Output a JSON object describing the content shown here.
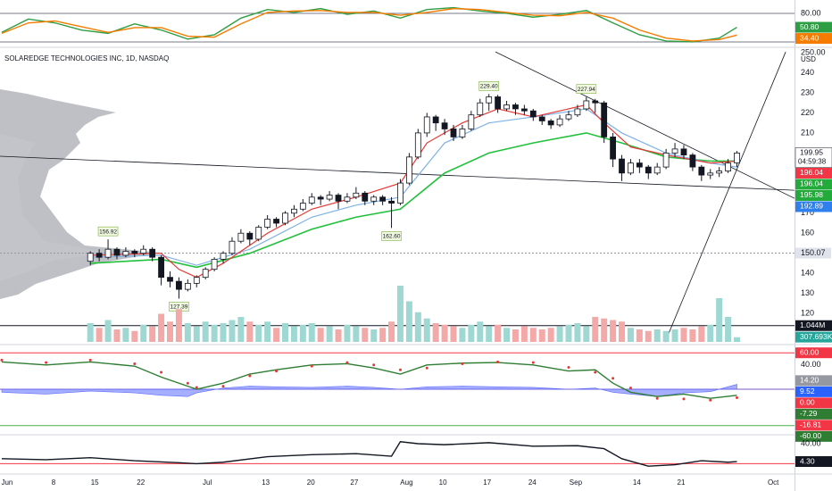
{
  "chart_data": [
    {
      "type": "line",
      "ylim": [
        10,
        100
      ],
      "yticks": [
        {
          "value": 80,
          "label": "80.00"
        }
      ],
      "levels": [
        {
          "value": 80,
          "color": "#787b86"
        },
        {
          "value": 20,
          "color": "#787b86"
        }
      ],
      "x": [
        -10,
        -7,
        -4,
        -1,
        2,
        5,
        8,
        11,
        14,
        17,
        20,
        23,
        26,
        29,
        32,
        35,
        38,
        41,
        44,
        47,
        50,
        53,
        56,
        59,
        62,
        65,
        68,
        71,
        73
      ],
      "series": [
        {
          "color": "#2e9e44",
          "values": [
            40,
            68,
            60,
            45,
            38,
            58,
            45,
            26,
            35,
            70,
            88,
            82,
            90,
            78,
            85,
            70,
            88,
            92,
            85,
            80,
            72,
            78,
            86,
            60,
            35,
            22,
            20,
            28,
            50.8
          ]
        },
        {
          "color": "#f57c00",
          "values": [
            38,
            60,
            64,
            52,
            40,
            50,
            50,
            32,
            30,
            58,
            82,
            85,
            86,
            82,
            82,
            76,
            82,
            90,
            88,
            82,
            76,
            75,
            82,
            70,
            45,
            28,
            22,
            25,
            34.4
          ]
        }
      ],
      "tags": [
        {
          "value": 50.8,
          "label": "50.80",
          "color": "#2e9e44"
        },
        {
          "value": 34.4,
          "label": "34.40",
          "color": "#f57c00"
        }
      ]
    },
    {
      "type": "candlestick",
      "title": "SOLAREDGE TECHNOLOGIES INC, 1D, NASDAQ",
      "unit": "USD",
      "ylim": [
        104.9,
        252.7
      ],
      "xlim": [
        -10.2,
        79.5
      ],
      "yticks": [
        {
          "value": 250,
          "label": "250.00"
        },
        240,
        230,
        220,
        210,
        170,
        160,
        140,
        130,
        120
      ],
      "xticks": [
        {
          "value": -9.4,
          "label": "Jun"
        },
        {
          "value": -4.15,
          "label": "8"
        },
        {
          "value": 0.5,
          "label": "15"
        },
        {
          "value": 5.7,
          "label": "22"
        },
        {
          "value": 13.2,
          "label": "Jul"
        },
        {
          "value": 19.8,
          "label": "13"
        },
        {
          "value": 24.9,
          "label": "20"
        },
        {
          "value": 29.8,
          "label": "27"
        },
        {
          "value": 35.7,
          "label": "Aug"
        },
        {
          "value": 39.8,
          "label": "10"
        },
        {
          "value": 44.8,
          "label": "17"
        },
        {
          "value": 49.9,
          "label": "24"
        },
        {
          "value": 54.8,
          "label": "Sep"
        },
        {
          "value": 61.7,
          "label": "14"
        },
        {
          "value": 66.7,
          "label": "21"
        },
        {
          "value": 77.1,
          "label": "Oct"
        }
      ],
      "up_color": "#ffffff",
      "down_color": "#131722",
      "outline": "#131722",
      "candles": [
        [
          146,
          151,
          144,
          150
        ],
        [
          150,
          152,
          146,
          148
        ],
        [
          148,
          156.92,
          147,
          152
        ],
        [
          152,
          153,
          147,
          149
        ],
        [
          149,
          153,
          148,
          151
        ],
        [
          151,
          152,
          148,
          150
        ],
        [
          150,
          154,
          149,
          152
        ],
        [
          152,
          153,
          146,
          148
        ],
        [
          148,
          149,
          134,
          138
        ],
        [
          138,
          141,
          133,
          136
        ],
        [
          136,
          138,
          127.39,
          132
        ],
        [
          132,
          137,
          131,
          135
        ],
        [
          135,
          139,
          133,
          138
        ],
        [
          138,
          143,
          137,
          142
        ],
        [
          142,
          148,
          141,
          147
        ],
        [
          147,
          151,
          145,
          150
        ],
        [
          150,
          158,
          149,
          156
        ],
        [
          156,
          162,
          155,
          160
        ],
        [
          160,
          161,
          154,
          157
        ],
        [
          157,
          164,
          156,
          163
        ],
        [
          163,
          169,
          162,
          167
        ],
        [
          167,
          168,
          163,
          165
        ],
        [
          165,
          171,
          164,
          170
        ],
        [
          170,
          174,
          168,
          172
        ],
        [
          172,
          177,
          171,
          175
        ],
        [
          175,
          180,
          174,
          178
        ],
        [
          178,
          179,
          174,
          177
        ],
        [
          177,
          181,
          176,
          179
        ],
        [
          179,
          180,
          172,
          176
        ],
        [
          176,
          180,
          175,
          178
        ],
        [
          178,
          183,
          177,
          180
        ],
        [
          180,
          181,
          174,
          176
        ],
        [
          176,
          179,
          174,
          178
        ],
        [
          178,
          179,
          174,
          176
        ],
        [
          176,
          178,
          162.6,
          175
        ],
        [
          175,
          187,
          174,
          185
        ],
        [
          185,
          200,
          184,
          198
        ],
        [
          198,
          212,
          197,
          210
        ],
        [
          210,
          220,
          208,
          218
        ],
        [
          218,
          219,
          211,
          215
        ],
        [
          215,
          217,
          209,
          212
        ],
        [
          212,
          214,
          206,
          208
        ],
        [
          208,
          214,
          207,
          212
        ],
        [
          212,
          221,
          211,
          219
        ],
        [
          219,
          227,
          218,
          225
        ],
        [
          225,
          229.4,
          221,
          228
        ],
        [
          228,
          229,
          220,
          222
        ],
        [
          222,
          226,
          221,
          224
        ],
        [
          224,
          225,
          219,
          222
        ],
        [
          222,
          224,
          219,
          221
        ],
        [
          221,
          222,
          216,
          218
        ],
        [
          218,
          219,
          214,
          216
        ],
        [
          216,
          217,
          212,
          214
        ],
        [
          214,
          219,
          213,
          217
        ],
        [
          217,
          221,
          216,
          219
        ],
        [
          219,
          224,
          218,
          222
        ],
        [
          222,
          227.94,
          221,
          226
        ],
        [
          226,
          227,
          220,
          225
        ],
        [
          225,
          226,
          205,
          208
        ],
        [
          208,
          210,
          193,
          197
        ],
        [
          197,
          199,
          186,
          190
        ],
        [
          190,
          197,
          189,
          195
        ],
        [
          195,
          197,
          190,
          193
        ],
        [
          193,
          194,
          187,
          190
        ],
        [
          190,
          195,
          189,
          193
        ],
        [
          193,
          202,
          192,
          200
        ],
        [
          200,
          205,
          198,
          202
        ],
        [
          202,
          204,
          197,
          199
        ],
        [
          199,
          200,
          191,
          193
        ],
        [
          193,
          194,
          186,
          189
        ],
        [
          189,
          192,
          187,
          190
        ],
        [
          190,
          193,
          188,
          191
        ],
        [
          191,
          197,
          190,
          195
        ],
        [
          195,
          201,
          193,
          200
        ]
      ],
      "series": [
        {
          "color": "#22c03c",
          "x": [
            0,
            8,
            12,
            18,
            25,
            30,
            35,
            40,
            45,
            50,
            56,
            60,
            65,
            70,
            73
          ],
          "values": [
            145,
            147,
            143,
            150,
            162,
            168,
            172,
            190,
            200,
            205,
            210,
            205,
            198,
            196,
            196
          ]
        },
        {
          "color": "#7fb2e5",
          "x": [
            0,
            8,
            12,
            18,
            25,
            30,
            35,
            40,
            45,
            50,
            56,
            60,
            65,
            70,
            73
          ],
          "values": [
            148,
            149,
            144,
            152,
            168,
            174,
            178,
            205,
            215,
            218,
            222,
            210,
            200,
            195,
            193
          ]
        },
        {
          "color": "#e53935",
          "x": [
            0,
            8,
            10,
            12,
            15,
            20,
            25,
            30,
            35,
            38,
            42,
            46,
            50,
            56,
            58,
            61,
            65,
            70,
            73
          ],
          "values": [
            149,
            150,
            142,
            138,
            145,
            160,
            172,
            178,
            185,
            205,
            215,
            222,
            218,
            224,
            215,
            203,
            199,
            195,
            196
          ]
        }
      ],
      "trendlines": [
        {
          "x": [
            -10.2,
            79.5
          ],
          "values": [
            198.4,
            181.4
          ]
        },
        {
          "x": [
            45.74,
            79.5
          ],
          "values": [
            250.4,
            177.4
          ]
        },
        {
          "x": [
            64.89,
            78.5
          ],
          "values": [
            105.7,
            250.4
          ]
        }
      ],
      "levels": [
        {
          "value": 150.07,
          "color": "#9598a1",
          "style": "dotted"
        }
      ],
      "annotations": [
        {
          "x": 2,
          "value": 156.92,
          "position": "above"
        },
        {
          "x": 10,
          "value": 127.39,
          "position": "below"
        },
        {
          "x": 34,
          "value": 162.6,
          "label": "162.60",
          "position": "below"
        },
        {
          "x": 45,
          "value": 229.4,
          "label": "229.40",
          "position": "above"
        },
        {
          "x": 56,
          "value": 227.94,
          "position": "above"
        }
      ],
      "countdown": "04:59:38",
      "tags": [
        {
          "value": 199.95,
          "color": "#ffffff",
          "text_color": "#131722"
        },
        {
          "value": 196.04,
          "color": "#f23645"
        },
        {
          "value": 196.04,
          "color": "#22ab3a"
        },
        {
          "value": 195.98,
          "color": "#22ab3a"
        },
        {
          "value": 192.89,
          "color": "#2f80ed"
        }
      ],
      "level_tags": [
        {
          "value": 150.07,
          "color": "#e0e3eb",
          "text_color": "#131722"
        }
      ]
    },
    {
      "type": "bar",
      "ylim": [
        0,
        4
      ],
      "up_color": "#9fd8d2",
      "down_color": "#f4a9a9",
      "values": [
        1.2,
        0.9,
        1.4,
        0.8,
        0.9,
        0.7,
        1.1,
        1.0,
        1.8,
        1.3,
        2.1,
        1.2,
        1.0,
        1.3,
        1.1,
        1.2,
        1.4,
        1.6,
        1.3,
        1.1,
        1.3,
        0.9,
        1.2,
        1.0,
        1.1,
        1.2,
        0.9,
        1.0,
        0.8,
        1.1,
        1.0,
        0.9,
        0.8,
        0.9,
        1.3,
        3.6,
        2.6,
        1.9,
        1.5,
        1.2,
        1.1,
        1.0,
        0.9,
        1.1,
        1.3,
        1.0,
        1.1,
        0.9,
        0.8,
        1.0,
        0.9,
        0.8,
        0.9,
        1.0,
        1.1,
        1.2,
        1.0,
        1.6,
        1.5,
        1.4,
        1.3,
        0.9,
        0.8,
        0.7,
        0.8,
        0.7,
        0.8,
        0.9,
        0.8,
        1.0,
        1.1,
        2.8,
        1.6,
        0.3
      ],
      "levels": [
        {
          "value": 1.044,
          "color": "#131722"
        }
      ],
      "tags": [
        {
          "value": 1.044,
          "label": "1.044M",
          "color": "#131722"
        },
        {
          "value": 0.307693,
          "label": "307.693K",
          "color": "#26a69a"
        }
      ]
    },
    {
      "type": "line",
      "ylim": [
        -70,
        70
      ],
      "yticks": [
        {
          "value": 40,
          "label": "40.00"
        }
      ],
      "levels": [
        {
          "value": 60,
          "color": "#f23645"
        },
        {
          "value": 0,
          "color": "#7e57c2"
        },
        {
          "value": -60,
          "color": "#4caf50"
        }
      ],
      "x": [
        -10,
        -5,
        0,
        5,
        8,
        11,
        12,
        15,
        18,
        21,
        25,
        29,
        32,
        35,
        38,
        42,
        46,
        50,
        54,
        57,
        59,
        61,
        64,
        67,
        70,
        73
      ],
      "series": [
        {
          "color": "#5c6bff",
          "style": "area",
          "values": [
            -5,
            -8,
            -3,
            -6,
            -10,
            -12,
            -6,
            2,
            5,
            4,
            3,
            5,
            3,
            0,
            4,
            5,
            4,
            3,
            0,
            2,
            -5,
            -8,
            -12,
            -6,
            -4,
            8
          ]
        },
        {
          "color": "#2e7d32",
          "values": [
            45,
            40,
            45,
            38,
            20,
            5,
            0,
            10,
            25,
            32,
            40,
            42,
            35,
            25,
            40,
            43,
            44,
            40,
            30,
            32,
            10,
            -5,
            -12,
            -8,
            -15,
            -10
          ]
        },
        {
          "color": "#e53935",
          "style": "dots",
          "values": [
            48,
            44,
            48,
            42,
            28,
            10,
            3,
            5,
            22,
            30,
            38,
            44,
            40,
            32,
            35,
            42,
            45,
            44,
            36,
            28,
            18,
            2,
            -15,
            -16,
            -18,
            -14
          ]
        }
      ],
      "tags": [
        {
          "value": 60,
          "label": "60.00",
          "color": "#f23645"
        },
        {
          "value": 14.2,
          "label": "14.20",
          "color": "#9598a1"
        },
        {
          "value": 9.52,
          "color": "#2962ff"
        },
        {
          "value": 0,
          "label": "0.00",
          "color": "#f23645"
        },
        {
          "value": -7.29,
          "color": "#2e7d32"
        },
        {
          "value": -16.81,
          "color": "#f23645"
        },
        {
          "value": -60,
          "label": "-60.00",
          "color": "#2e7d32"
        }
      ]
    },
    {
      "type": "line",
      "ylim": [
        -15.3,
        55
      ],
      "yticks": [
        {
          "value": 40,
          "label": "40.00"
        }
      ],
      "levels": [
        {
          "value": 0,
          "color": "#f23645"
        }
      ],
      "x": [
        -10,
        -5,
        0,
        5,
        10,
        12,
        15,
        20,
        25,
        30,
        34,
        35,
        37,
        40,
        45,
        50,
        55,
        58,
        60,
        63,
        66,
        69,
        72,
        73
      ],
      "series": [
        {
          "color": "#131722",
          "values": [
            10,
            8,
            12,
            6,
            2,
            0,
            3,
            14,
            18,
            20,
            15,
            44,
            40,
            38,
            42,
            35,
            36,
            30,
            10,
            -5,
            -2,
            6,
            3,
            4.3
          ]
        }
      ],
      "tags": [
        {
          "value": 4.3,
          "label": "4.30",
          "color": "#131722"
        }
      ]
    }
  ]
}
